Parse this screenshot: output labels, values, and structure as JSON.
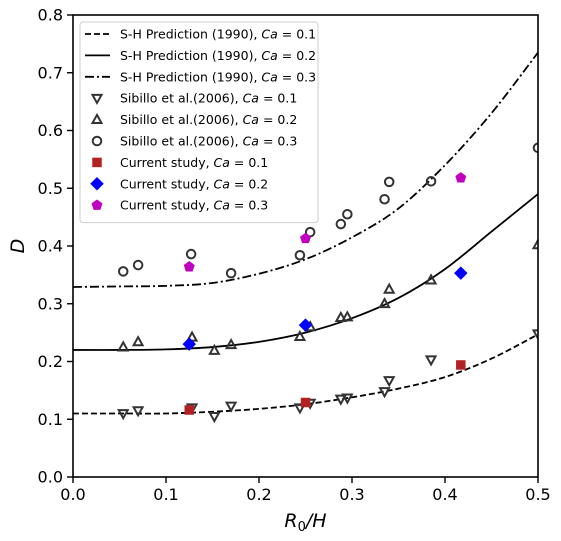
{
  "chart_data": {
    "type": "scatter",
    "xlabel_main": "R",
    "xlabel_sub": "0",
    "xlabel_tail": "/H",
    "ylabel": "D",
    "xlim": [
      0.0,
      0.5
    ],
    "ylim": [
      0.0,
      0.8
    ],
    "x_ticks": [
      "0.0",
      "0.1",
      "0.2",
      "0.3",
      "0.4",
      "0.5"
    ],
    "y_ticks": [
      "0.0",
      "0.1",
      "0.2",
      "0.3",
      "0.4",
      "0.5",
      "0.6",
      "0.7",
      "0.8"
    ],
    "grid": false,
    "legend_position": "top-left",
    "lines": [
      {
        "label_prefix": "S-H Prediction (1990), ",
        "ca": "0.1",
        "dash": "dashed",
        "color": "#000000",
        "x": [
          0.0,
          0.05,
          0.1,
          0.15,
          0.2,
          0.25,
          0.3,
          0.35,
          0.4,
          0.45,
          0.5
        ],
        "y": [
          0.11,
          0.11,
          0.11,
          0.113,
          0.118,
          0.126,
          0.138,
          0.153,
          0.173,
          0.205,
          0.247
        ]
      },
      {
        "label_prefix": "S-H Prediction (1990), ",
        "ca": "0.2",
        "dash": "solid",
        "color": "#000000",
        "x": [
          0.0,
          0.05,
          0.1,
          0.15,
          0.2,
          0.25,
          0.3,
          0.35,
          0.4,
          0.45,
          0.5
        ],
        "y": [
          0.22,
          0.22,
          0.221,
          0.225,
          0.234,
          0.25,
          0.275,
          0.31,
          0.36,
          0.425,
          0.49
        ]
      },
      {
        "label_prefix": "S-H Prediction (1990), ",
        "ca": "0.3",
        "dash": "dashdot",
        "color": "#000000",
        "x": [
          0.0,
          0.05,
          0.1,
          0.15,
          0.2,
          0.25,
          0.3,
          0.35,
          0.4,
          0.45,
          0.5
        ],
        "y": [
          0.329,
          0.33,
          0.331,
          0.336,
          0.352,
          0.377,
          0.415,
          0.465,
          0.54,
          0.63,
          0.735
        ]
      }
    ],
    "scatter": [
      {
        "label_prefix": "Sibillo et al.(2006), ",
        "ca": "0.1",
        "marker": "triangle-down",
        "filled": false,
        "color": "#333333",
        "x": [
          0.054,
          0.07,
          0.128,
          0.152,
          0.17,
          0.244,
          0.255,
          0.288,
          0.295,
          0.335,
          0.34,
          0.385,
          0.5
        ],
        "y": [
          0.11,
          0.115,
          0.12,
          0.105,
          0.123,
          0.12,
          0.128,
          0.135,
          0.137,
          0.148,
          0.167,
          0.203,
          0.248
        ]
      },
      {
        "label_prefix": "Sibillo et al.(2006), ",
        "ca": "0.2",
        "marker": "triangle-up",
        "filled": false,
        "color": "#333333",
        "x": [
          0.054,
          0.07,
          0.128,
          0.152,
          0.17,
          0.244,
          0.255,
          0.288,
          0.295,
          0.335,
          0.34,
          0.385,
          0.5
        ],
        "y": [
          0.225,
          0.234,
          0.242,
          0.219,
          0.229,
          0.243,
          0.26,
          0.276,
          0.277,
          0.3,
          0.325,
          0.341,
          0.402
        ]
      },
      {
        "label_prefix": "Sibillo et al.(2006), ",
        "ca": "0.3",
        "marker": "circle",
        "filled": false,
        "color": "#333333",
        "x": [
          0.054,
          0.07,
          0.127,
          0.17,
          0.244,
          0.255,
          0.288,
          0.295,
          0.335,
          0.34,
          0.385,
          0.5
        ],
        "y": [
          0.356,
          0.367,
          0.386,
          0.353,
          0.384,
          0.424,
          0.438,
          0.455,
          0.481,
          0.511,
          0.512,
          0.57
        ]
      },
      {
        "label_prefix": "Current study, ",
        "ca": "0.1",
        "marker": "square",
        "filled": true,
        "color": "#b22222",
        "x": [
          0.125,
          0.25,
          0.417
        ],
        "y": [
          0.116,
          0.129,
          0.194
        ]
      },
      {
        "label_prefix": "Current study, ",
        "ca": "0.2",
        "marker": "diamond",
        "filled": true,
        "color": "#0000ff",
        "x": [
          0.125,
          0.25,
          0.417
        ],
        "y": [
          0.23,
          0.263,
          0.353
        ]
      },
      {
        "label_prefix": "Current study, ",
        "ca": "0.3",
        "marker": "pentagon",
        "filled": true,
        "color": "#c000c0",
        "x": [
          0.125,
          0.25,
          0.417
        ],
        "y": [
          0.364,
          0.413,
          0.518
        ]
      }
    ],
    "legend_ca_symbol": "Ca",
    "legend_equals": " = "
  }
}
